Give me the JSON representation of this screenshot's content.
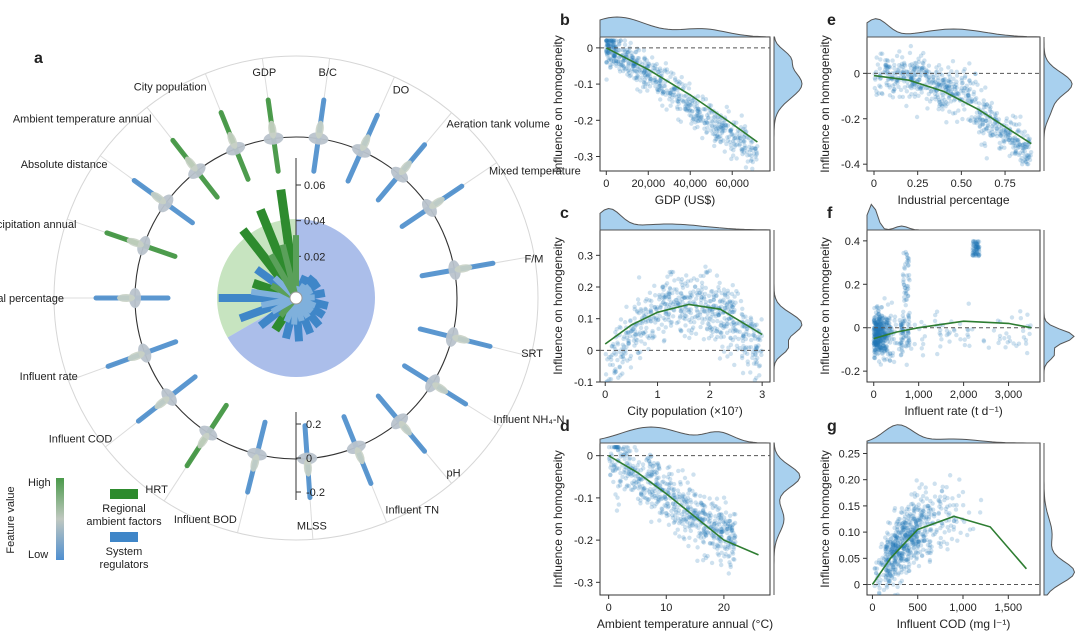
{
  "colors": {
    "green": "#2e8b2e",
    "green_light": "#5aa05a",
    "blue": "#3f86c8",
    "blue_light": "#7fb0dc",
    "blue_scatter": "#1f77b4",
    "fit_line": "#2e7d32",
    "green_sector": "#b9ddb0",
    "blue_sector": "#9cb3e6",
    "marginal_fill": "#a8d0ee",
    "marginal_line": "#555555",
    "grey_blob": "#b9c3cc"
  },
  "panel_a": {
    "letter": "a",
    "features": [
      {
        "label": "GDP",
        "angle": -8,
        "group": "regional",
        "importance": 0.058
      },
      {
        "label": "B/C",
        "angle": 8,
        "group": "system",
        "importance": 0.006
      },
      {
        "label": "DO",
        "angle": 24,
        "group": "system",
        "importance": 0.01
      },
      {
        "label": "Aeration tank volume",
        "angle": 40,
        "group": "system",
        "importance": 0.012
      },
      {
        "label": "Mixed temperature",
        "angle": 56,
        "group": "system",
        "importance": 0.012
      },
      {
        "label": "F/M",
        "angle": 80,
        "group": "system",
        "importance": 0.013
      },
      {
        "label": "SRT",
        "angle": 104,
        "group": "system",
        "importance": 0.015
      },
      {
        "label": "Influent NH₄-N",
        "angle": 122,
        "group": "system",
        "importance": 0.015
      },
      {
        "label": "pH",
        "angle": 140,
        "group": "system",
        "importance": 0.017
      },
      {
        "label": "Influent TN",
        "angle": 158,
        "group": "system",
        "importance": 0.018
      },
      {
        "label": "MLSS",
        "angle": 176,
        "group": "system",
        "importance": 0.021
      },
      {
        "label": "Influent BOD",
        "angle": 194,
        "group": "system",
        "importance": 0.02
      },
      {
        "label": "HRT",
        "angle": 213,
        "group": "regional",
        "importance": 0.018
      },
      {
        "label": "Influent COD",
        "angle": 232,
        "group": "system",
        "importance": 0.022
      },
      {
        "label": "Influent rate",
        "angle": 250,
        "group": "system",
        "importance": 0.03
      },
      {
        "label": "Industrial percentage",
        "angle": 270,
        "group": "system",
        "importance": 0.04
      },
      {
        "label": "Precipitation annual",
        "angle": 289,
        "group": "regional",
        "importance": 0.022
      },
      {
        "label": "Absolute distance",
        "angle": 306,
        "group": "system",
        "importance": 0.024
      },
      {
        "label": "Ambient temperature annual",
        "angle": 322,
        "group": "regional",
        "importance": 0.045
      },
      {
        "label": "City population",
        "angle": 338,
        "group": "regional",
        "importance": 0.05
      }
    ],
    "radial_ticks": [
      0.02,
      0.04,
      0.06
    ],
    "shap_ticks": [
      -0.2,
      0,
      0.2
    ],
    "legend": {
      "colorbar_title": "Feature value",
      "high": "High",
      "low": "Low",
      "regional_line1": "Regional",
      "regional_line2": "ambient factors",
      "system_line1": "System",
      "system_line2": "regulators"
    }
  },
  "scatter_panels": [
    {
      "letter": "b",
      "xlabel": "GDP (US$)",
      "ylabel": "Influence on homogeneity",
      "xticks": [
        0,
        20000,
        40000,
        60000
      ],
      "xtick_labels": [
        "0",
        "20,000",
        "40,000",
        "60,000"
      ],
      "yticks": [
        -0.3,
        -0.2,
        -0.1,
        0
      ],
      "ytick_labels": [
        "-0.3",
        "-0.2",
        "-0.1",
        "0"
      ],
      "xlim": [
        -3000,
        78000
      ],
      "ylim": [
        -0.34,
        0.03
      ],
      "fit": [
        [
          0,
          0.0
        ],
        [
          20000,
          -0.06
        ],
        [
          40000,
          -0.13
        ],
        [
          60000,
          -0.21
        ],
        [
          72000,
          -0.26
        ]
      ]
    },
    {
      "letter": "c",
      "xlabel": "City population (×10⁷)",
      "ylabel": "Influence on homogeneity",
      "xticks": [
        0,
        1,
        2,
        3
      ],
      "xtick_labels": [
        "0",
        "1",
        "2",
        "3"
      ],
      "yticks": [
        -0.1,
        0,
        0.1,
        0.2,
        0.3
      ],
      "ytick_labels": [
        "-0.1",
        "0",
        "0.1",
        "0.2",
        "0.3"
      ],
      "xlim": [
        -0.1,
        3.15
      ],
      "ylim": [
        -0.1,
        0.38
      ],
      "fit": [
        [
          0,
          0.02
        ],
        [
          0.5,
          0.08
        ],
        [
          1.0,
          0.12
        ],
        [
          1.6,
          0.145
        ],
        [
          2.2,
          0.13
        ],
        [
          3.0,
          0.05
        ]
      ]
    },
    {
      "letter": "d",
      "xlabel": "Ambient temperature annual (°C)",
      "ylabel": "Influence on homogeneity",
      "xticks": [
        0,
        10,
        20
      ],
      "xtick_labels": [
        "0",
        "10",
        "20"
      ],
      "yticks": [
        -0.3,
        -0.2,
        -0.1,
        0
      ],
      "ytick_labels": [
        "-0.3",
        "-0.2",
        "-0.1",
        "0"
      ],
      "xlim": [
        -1.5,
        28
      ],
      "ylim": [
        -0.33,
        0.03
      ],
      "fit": [
        [
          0,
          0.0
        ],
        [
          5,
          -0.04
        ],
        [
          10,
          -0.09
        ],
        [
          15,
          -0.145
        ],
        [
          20,
          -0.2
        ],
        [
          26,
          -0.235
        ]
      ]
    },
    {
      "letter": "e",
      "xlabel": "Industrial percentage",
      "ylabel": "Influence on homogeneity",
      "xticks": [
        0,
        0.25,
        0.5,
        0.75
      ],
      "xtick_labels": [
        "0",
        "0.25",
        "0.50",
        "0.75"
      ],
      "yticks": [
        -0.4,
        -0.2,
        0
      ],
      "ytick_labels": [
        "-0.4",
        "-0.2",
        "0"
      ],
      "xlim": [
        -0.04,
        0.95
      ],
      "ylim": [
        -0.43,
        0.16
      ],
      "fit": [
        [
          0,
          -0.01
        ],
        [
          0.2,
          -0.03
        ],
        [
          0.4,
          -0.08
        ],
        [
          0.6,
          -0.16
        ],
        [
          0.8,
          -0.26
        ],
        [
          0.9,
          -0.31
        ]
      ]
    },
    {
      "letter": "f",
      "xlabel": "Influent rate (t d⁻¹)",
      "ylabel": "Influence on homogeneity",
      "xticks": [
        0,
        1000,
        2000,
        3000
      ],
      "xtick_labels": [
        "0",
        "1,000",
        "2,000",
        "3,000"
      ],
      "yticks": [
        -0.2,
        0,
        0.2,
        0.4
      ],
      "ytick_labels": [
        "-0.2",
        "0",
        "0.2",
        "0.4"
      ],
      "xlim": [
        -150,
        3700
      ],
      "ylim": [
        -0.25,
        0.45
      ],
      "fit": [
        [
          0,
          -0.05
        ],
        [
          500,
          -0.02
        ],
        [
          1000,
          0.0
        ],
        [
          2000,
          0.03
        ],
        [
          3000,
          0.02
        ],
        [
          3500,
          0.0
        ]
      ]
    },
    {
      "letter": "g",
      "xlabel": "Influent COD (mg l⁻¹)",
      "ylabel": "Influence on homogeneity",
      "xticks": [
        0,
        500,
        1000,
        1500
      ],
      "xtick_labels": [
        "0",
        "500",
        "1,000",
        "1,500"
      ],
      "yticks": [
        0,
        0.05,
        0.1,
        0.15,
        0.2,
        0.25
      ],
      "ytick_labels": [
        "0",
        "0.05",
        "0.10",
        "0.15",
        "0.20",
        "0.25"
      ],
      "xlim": [
        -60,
        1850
      ],
      "ylim": [
        -0.02,
        0.27
      ],
      "fit": [
        [
          0,
          0.0
        ],
        [
          200,
          0.05
        ],
        [
          500,
          0.105
        ],
        [
          900,
          0.13
        ],
        [
          1300,
          0.11
        ],
        [
          1700,
          0.03
        ]
      ]
    }
  ]
}
